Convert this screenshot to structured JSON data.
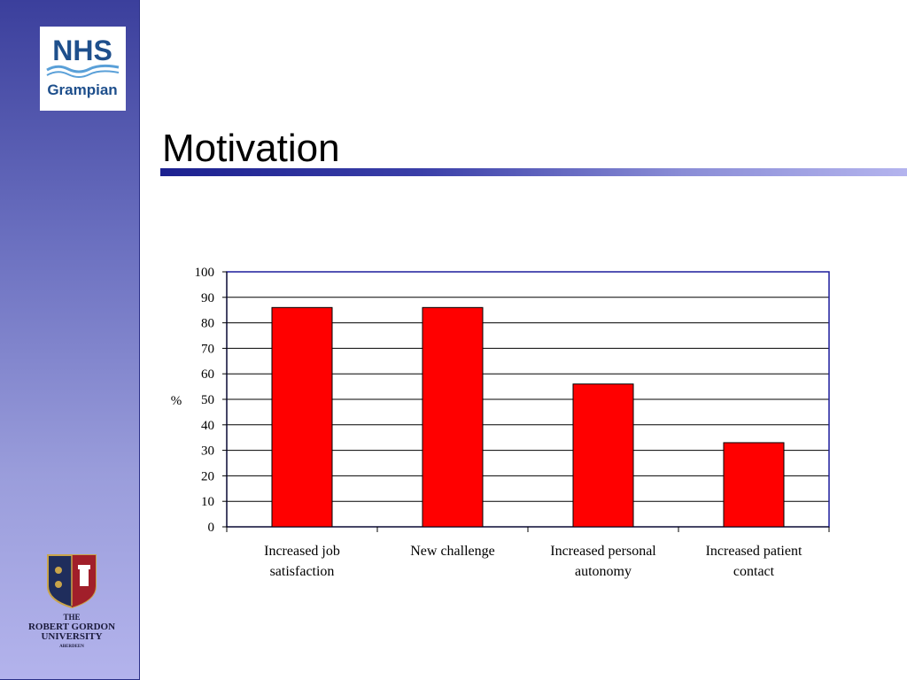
{
  "slide": {
    "title": "Motivation",
    "colors": {
      "accent": "#1c2190",
      "bar_fill": "#ff0000",
      "bar_stroke": "#000000",
      "plot_border": "#1c1c9c"
    }
  },
  "logos": {
    "nhs": {
      "line1": "NHS",
      "line2": "Grampian"
    },
    "rgu": {
      "line1": "THE",
      "line2": "ROBERT GORDON",
      "line3": "UNIVERSITY",
      "line4": "ABERDEEN"
    }
  },
  "chart_data": {
    "type": "bar",
    "title": "",
    "categories": [
      [
        "Increased job",
        "satisfaction"
      ],
      [
        "New challenge"
      ],
      [
        "Increased personal",
        "autonomy"
      ],
      [
        "Increased patient",
        "contact"
      ]
    ],
    "values": [
      86,
      86,
      56,
      33
    ],
    "ylabel": "%",
    "xlabel": "",
    "ylim": [
      0,
      100
    ],
    "yticks": [
      0,
      10,
      20,
      30,
      40,
      50,
      60,
      70,
      80,
      90,
      100
    ],
    "grid": true,
    "legend": "none"
  }
}
